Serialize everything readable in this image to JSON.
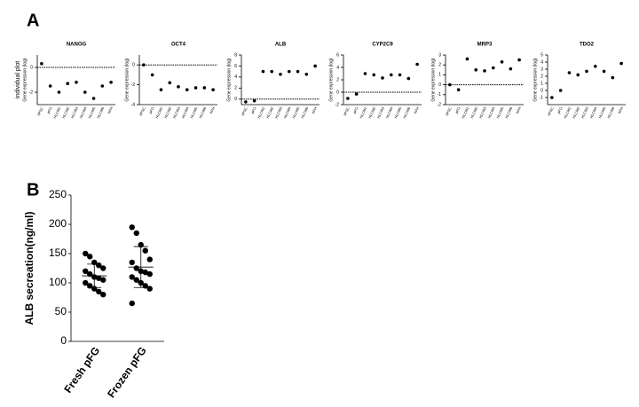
{
  "panels": [
    "A",
    "B"
  ],
  "row_label": "individual plot",
  "chart_data": [
    {
      "type": "dot",
      "title": "NANOG",
      "y_label": "Gene expression (log)",
      "categories": [
        "hPSC",
        "pFG",
        "HLCM1",
        "HLCM2",
        "HLCM3",
        "HLCM4",
        "HLCM5",
        "HLCM6",
        "hPH"
      ],
      "values": [
        0.3,
        -1.5,
        -2,
        -1.3,
        -1.2,
        -2,
        -2.5,
        -1.5,
        -1.2
      ],
      "color": "#000000",
      "ylim": [
        -3,
        1
      ],
      "yticks": [
        -2,
        0
      ],
      "ref_line": 0
    },
    {
      "type": "dot",
      "title": "OCT4",
      "y_label": "Gene expression (log)",
      "categories": [
        "hPSC",
        "pFG",
        "HLCM1",
        "HLCM2",
        "HLCM3",
        "HLCM4",
        "HLCM5",
        "HLCM6",
        "hPH"
      ],
      "values": [
        0,
        -1,
        -2.5,
        -1.8,
        -2.2,
        -2.5,
        -2.3,
        -2.3,
        -2.5
      ],
      "color": "#000000",
      "ylim": [
        -4,
        1
      ],
      "yticks": [
        -4,
        -2,
        0
      ],
      "ref_line": 0
    },
    {
      "type": "dot",
      "title": "ALB",
      "y_label": "Gene expression (log)",
      "categories": [
        "hPSC",
        "pFG",
        "HLCM1",
        "HLCM2",
        "HLCM3",
        "HLCM4",
        "HLCM5",
        "HLCM6",
        "hPH"
      ],
      "values": [
        -0.5,
        -0.3,
        5,
        5,
        4.5,
        5,
        5,
        4.5,
        6
      ],
      "color": "#000000",
      "ylim": [
        -1,
        8
      ],
      "yticks": [
        0,
        2,
        4,
        6,
        8
      ],
      "ref_line": 0
    },
    {
      "type": "dot",
      "title": "CYP2C9",
      "y_label": "Gene expression (log)",
      "categories": [
        "hPSC",
        "pFG",
        "HLCM1",
        "HLCM2",
        "HLCM3",
        "HLCM4",
        "HLCM5",
        "HLCM6",
        "hPH"
      ],
      "values": [
        -1,
        -0.3,
        3,
        2.8,
        2.3,
        2.8,
        2.8,
        2.2,
        4.5
      ],
      "color": "#000000",
      "ylim": [
        -2,
        6
      ],
      "yticks": [
        -2,
        0,
        2,
        4,
        6
      ],
      "ref_line": 0
    },
    {
      "type": "dot",
      "title": "MRP3",
      "y_label": "Gene expression (log)",
      "categories": [
        "hPSC",
        "pFG",
        "HLCM1",
        "HLCM2",
        "HLCM3",
        "HLCM4",
        "HLCM5",
        "HLCM6",
        "hPH"
      ],
      "values": [
        0,
        -0.5,
        2.6,
        1.5,
        1.4,
        1.7,
        2.3,
        1.6,
        2.5
      ],
      "color": "#000000",
      "ylim": [
        -2,
        3
      ],
      "yticks": [
        -2,
        -1,
        0,
        1,
        2,
        3
      ],
      "ref_line": 0
    },
    {
      "type": "dot",
      "title": "TDO2",
      "y_label": "Gene expression (log)",
      "categories": [
        "hPSC",
        "pFG",
        "HLCM1",
        "HLCM2",
        "HLCM3",
        "HLCM4",
        "HLCM5",
        "HLCM6",
        "hPH"
      ],
      "values": [
        -1,
        0,
        2.5,
        2.2,
        2.7,
        3.4,
        2.7,
        1.8,
        3.8
      ],
      "color": "#000000",
      "ylim": [
        -2,
        5
      ],
      "yticks": [
        -1,
        0,
        1,
        2,
        3,
        4,
        5
      ]
    },
    {
      "type": "strip",
      "y_label": "ALB secreation(ng/ml)",
      "categories": [
        "Fresh pFG",
        "Frozen pFG"
      ],
      "color": "#000000",
      "series": [
        {
          "values": [
            150,
            145,
            135,
            130,
            125,
            120,
            115,
            110,
            108,
            105,
            100,
            95,
            90,
            85,
            80
          ],
          "mean": 112,
          "sd": 20
        },
        {
          "values": [
            195,
            185,
            165,
            155,
            140,
            135,
            125,
            120,
            118,
            115,
            110,
            105,
            100,
            95,
            90,
            65
          ],
          "mean": 127,
          "sd": 35
        }
      ],
      "ylim": [
        0,
        250
      ],
      "yticks": [
        0,
        50,
        100,
        150,
        200,
        250
      ]
    }
  ]
}
